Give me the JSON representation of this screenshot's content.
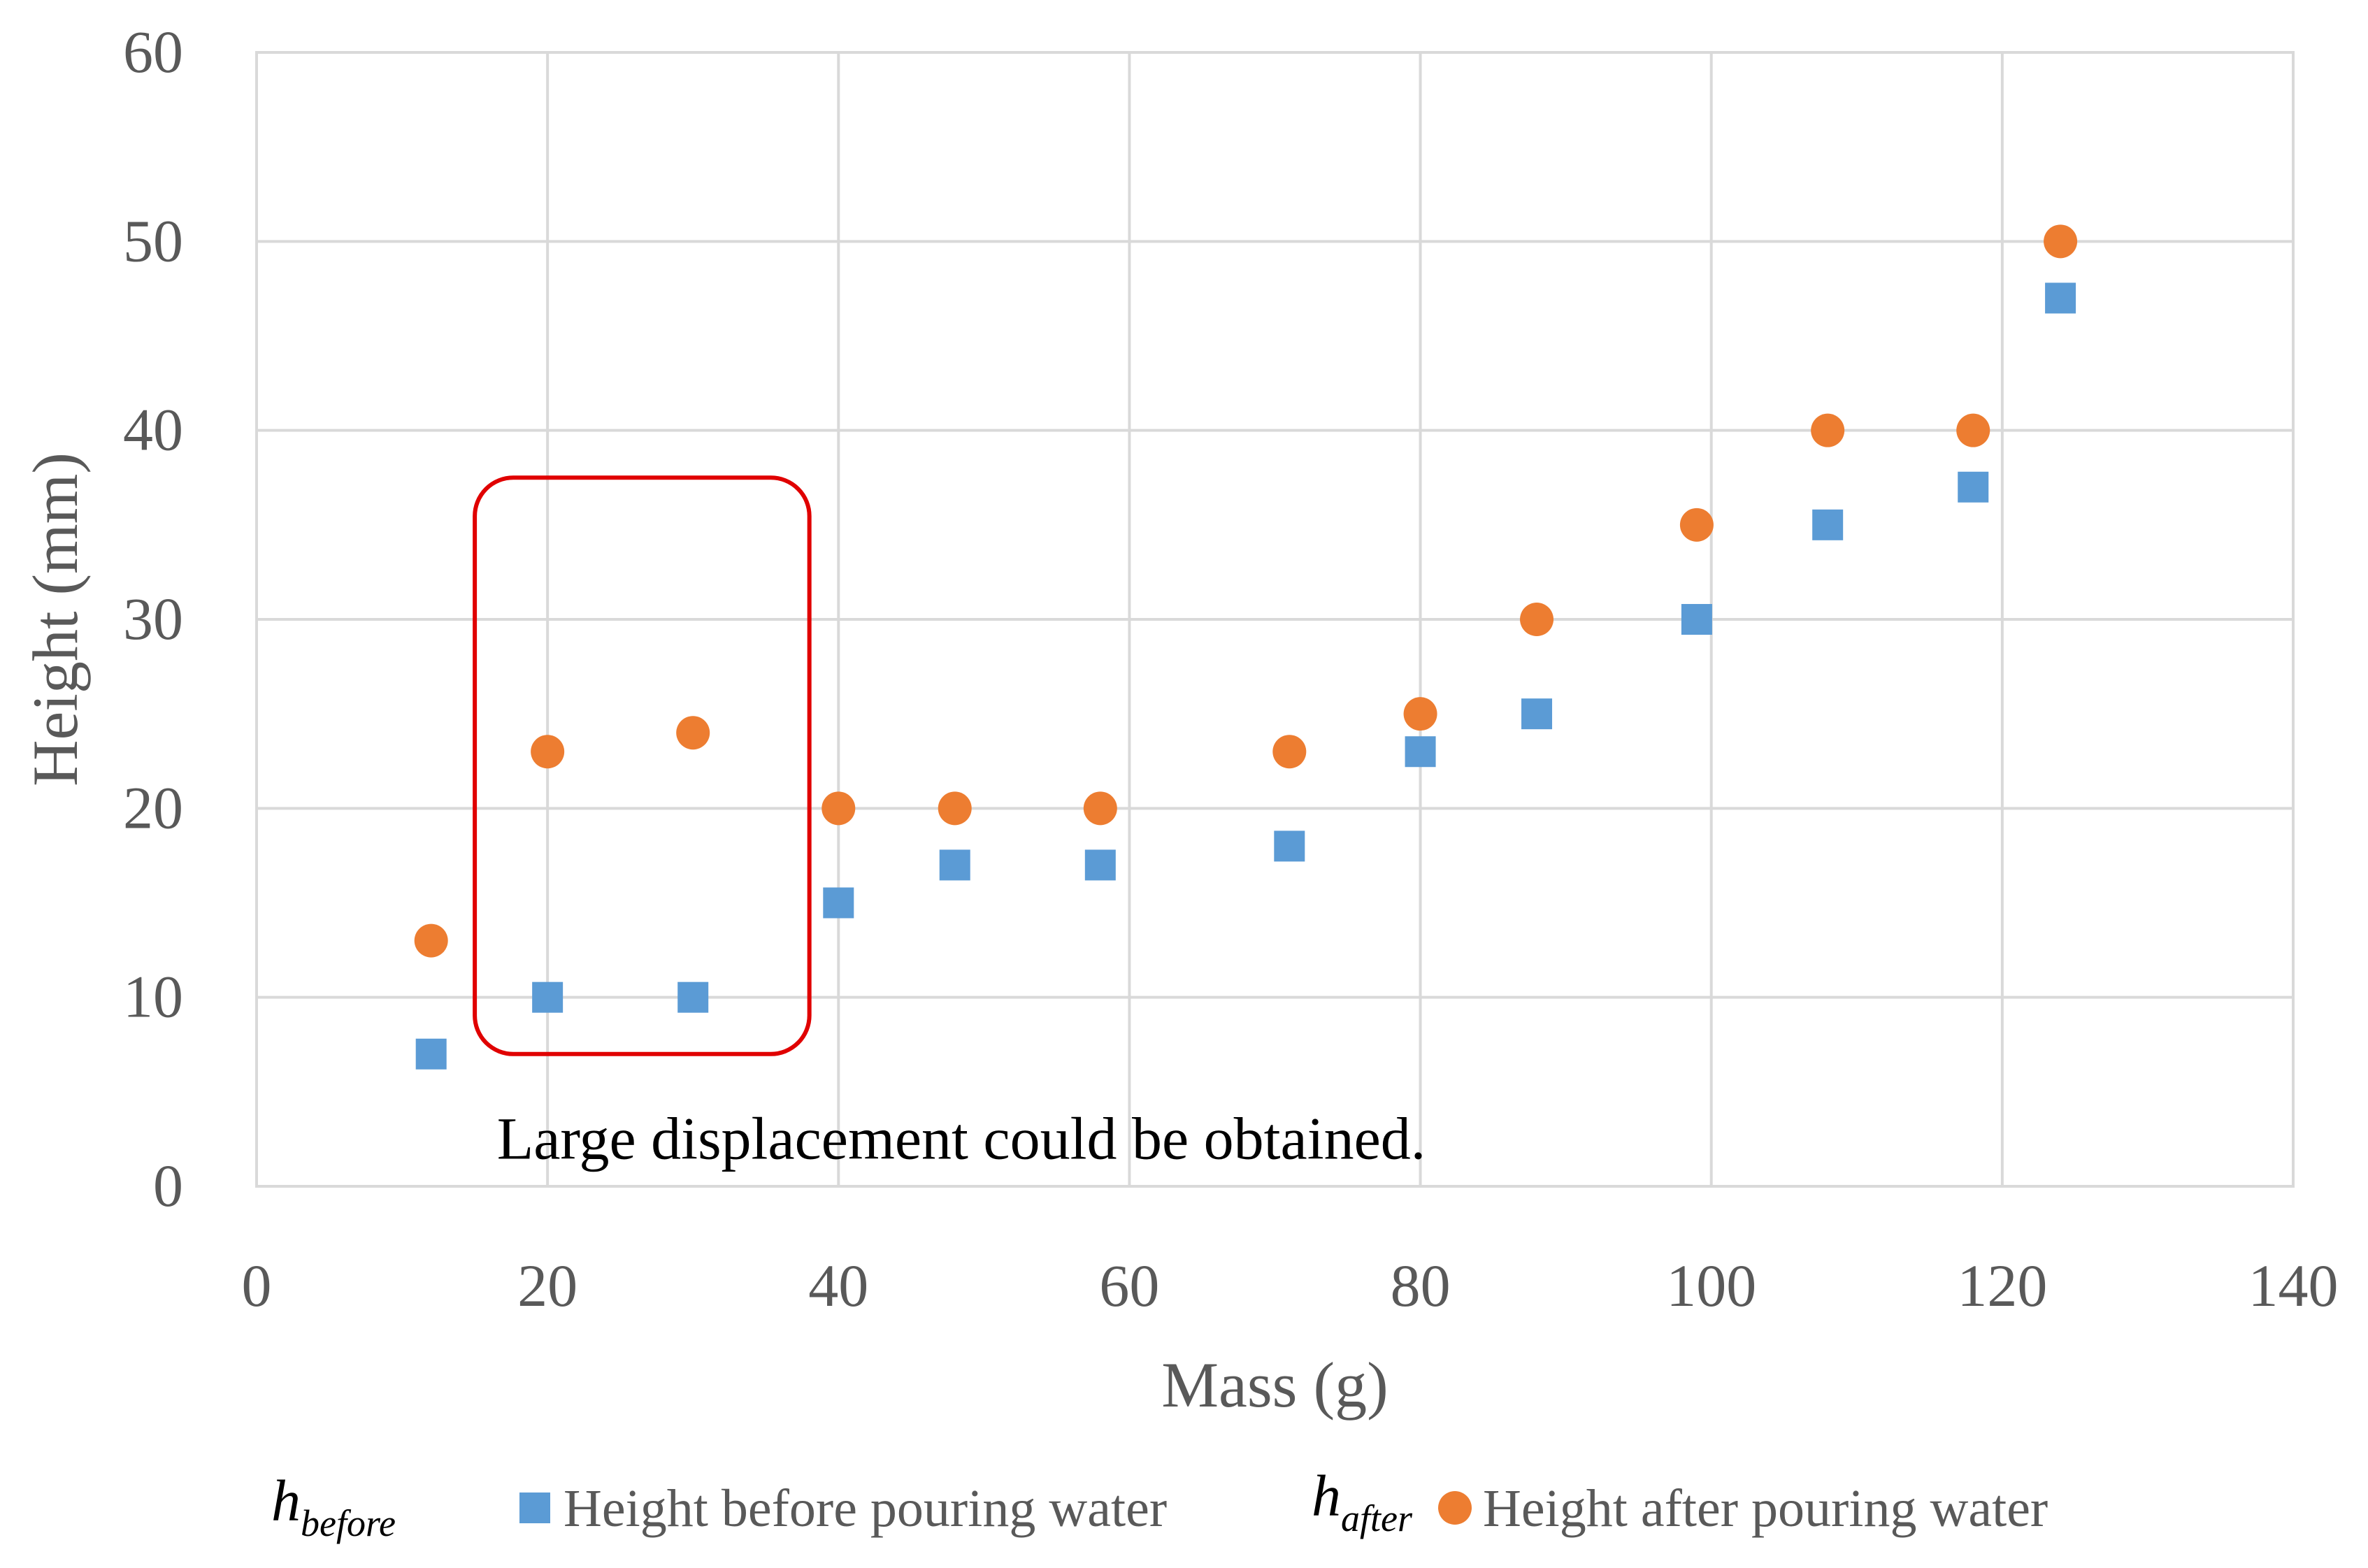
{
  "chart_data": {
    "type": "scatter",
    "title": "",
    "xlabel": "Mass (g)",
    "ylabel": "Height (mm)",
    "xlim": [
      0,
      140
    ],
    "ylim": [
      0,
      60
    ],
    "xticks": [
      0,
      20,
      40,
      60,
      80,
      100,
      120,
      140
    ],
    "yticks": [
      0,
      10,
      20,
      30,
      40,
      50,
      60
    ],
    "xtick_labels": [
      "0",
      "20",
      "40",
      "60",
      "80",
      "100",
      "120",
      "140"
    ],
    "ytick_labels": [
      "0",
      "10",
      "20",
      "30",
      "40",
      "50",
      "60"
    ],
    "grid": true,
    "legend_position": "bottom",
    "series": [
      {
        "name": "Height before pouring water",
        "symbol": "h",
        "symbol_sub": "before",
        "marker": "square",
        "color": "#5B9BD5",
        "x": [
          12,
          20,
          30,
          40,
          48,
          58,
          71,
          80,
          88,
          99,
          108,
          118,
          124
        ],
        "y": [
          7,
          10,
          10,
          15,
          17,
          17,
          18,
          23,
          25,
          30,
          35,
          37,
          47
        ]
      },
      {
        "name": "Height after pouring water",
        "symbol": "h",
        "symbol_sub": "after",
        "marker": "circle",
        "color": "#ED7D31",
        "x": [
          12,
          20,
          30,
          40,
          48,
          58,
          71,
          80,
          88,
          99,
          108,
          118,
          124
        ],
        "y": [
          13,
          23,
          24,
          20,
          20,
          20,
          23,
          25,
          30,
          35,
          40,
          40,
          50
        ]
      }
    ],
    "annotations": [
      {
        "type": "rounded-rectangle",
        "color": "#E00000",
        "x_range": [
          15,
          38
        ],
        "y_range": [
          7,
          37.5
        ]
      },
      {
        "type": "text",
        "text": "Large displacement could be obtained.",
        "x": 17,
        "y": 2.5
      }
    ]
  }
}
